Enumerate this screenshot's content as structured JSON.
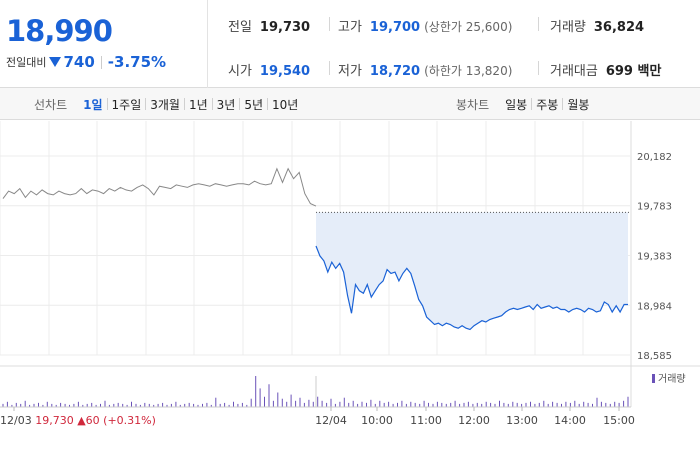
{
  "summary": {
    "price": "18,990",
    "change_label": "전일대비",
    "change_value": "740",
    "change_pct": "-3.75%",
    "direction": "down",
    "accent_color": "#1a62d6"
  },
  "stats": {
    "prev_close": {
      "label": "전일",
      "value": "19,730"
    },
    "open": {
      "label": "시가",
      "value": "19,540"
    },
    "high": {
      "label": "고가",
      "value": "19,700",
      "sub": "(상한가 25,600)"
    },
    "low": {
      "label": "저가",
      "value": "18,720",
      "sub": "(하한가 13,820)"
    },
    "volume": {
      "label": "거래량",
      "value": "36,824"
    },
    "amount": {
      "label": "거래대금",
      "value": "699 백만"
    }
  },
  "tabs": {
    "line_title": "선차트",
    "line_items": [
      "1일",
      "1주일",
      "3개월",
      "1년",
      "3년",
      "5년",
      "10년"
    ],
    "line_active": 0,
    "candle_title": "봉차트",
    "candle_items": [
      "일봉",
      "주봉",
      "월봉"
    ]
  },
  "chart_data": {
    "type": "line",
    "y_ticks": [
      "20,182",
      "19,783",
      "19,383",
      "18,984",
      "18,585"
    ],
    "y_tick_values": [
      20182,
      19783,
      19383,
      18984,
      18585
    ],
    "ylim": [
      18585,
      20182
    ],
    "prev_close_value": 19730,
    "x_ticks": [
      "12/03",
      "12/04",
      "10:00",
      "11:00",
      "12:00",
      "13:00",
      "14:00",
      "15:00"
    ],
    "previous_day_note": {
      "date": "12/03",
      "close": "19,730",
      "change": "▲60",
      "pct": "(+0.31%)"
    },
    "volume_legend": "거래량",
    "series": [
      {
        "day": "12/03",
        "values": [
          19840,
          19900,
          19880,
          19920,
          19850,
          19900,
          19870,
          19910,
          19880,
          19870,
          19900,
          19880,
          19870,
          19880,
          19920,
          19880,
          19910,
          19900,
          19880,
          19920,
          19900,
          19930,
          19910,
          19900,
          19930,
          19950,
          19920,
          19870,
          19940,
          19930,
          19920,
          19950,
          19940,
          19930,
          19950,
          19960,
          19950,
          19940,
          19960,
          19950,
          19940,
          19950,
          19960,
          19960,
          19950,
          19980,
          19960,
          19950,
          19960,
          20080,
          19970,
          20080,
          20000,
          20050,
          19880,
          19800,
          19780
        ]
      },
      {
        "day": "12/04",
        "values": [
          19460,
          19380,
          19340,
          19250,
          19330,
          19280,
          19320,
          19250,
          19060,
          18920,
          19150,
          19100,
          19080,
          19150,
          19050,
          19100,
          19150,
          19180,
          19270,
          19240,
          19250,
          19180,
          19240,
          19280,
          19240,
          19140,
          19030,
          18980,
          18890,
          18860,
          18830,
          18840,
          18820,
          18840,
          18830,
          18810,
          18800,
          18820,
          18800,
          18790,
          18820,
          18840,
          18860,
          18850,
          18870,
          18880,
          18890,
          18900,
          18930,
          18950,
          18960,
          18950,
          18960,
          18970,
          18980,
          18950,
          18990,
          18960,
          18970,
          18980,
          18960,
          18970,
          18950,
          18950,
          18930,
          18950,
          18960,
          18950,
          18930,
          18960,
          18950,
          18930,
          18940,
          19010,
          18990,
          18930,
          18980,
          18930,
          18990,
          18990
        ]
      }
    ],
    "volume": [
      3,
      5,
      2,
      4,
      3,
      6,
      2,
      3,
      4,
      2,
      5,
      3,
      2,
      4,
      3,
      2,
      3,
      5,
      2,
      3,
      4,
      2,
      3,
      6,
      2,
      3,
      4,
      3,
      2,
      5,
      3,
      2,
      4,
      3,
      2,
      3,
      4,
      2,
      3,
      5,
      2,
      3,
      4,
      3,
      2,
      3,
      4,
      2,
      9,
      3,
      4,
      2,
      5,
      3,
      4,
      2,
      8,
      30,
      18,
      10,
      22,
      6,
      14,
      8,
      5,
      12,
      6,
      9,
      4,
      7,
      5,
      10,
      6,
      4,
      8,
      3,
      5,
      9,
      4,
      6,
      3,
      5,
      4,
      7,
      3,
      6,
      4,
      5,
      3,
      4,
      6,
      3,
      5,
      4,
      3,
      6,
      4,
      3,
      5,
      4,
      3,
      4,
      6,
      3,
      4,
      5,
      3,
      4,
      3,
      5,
      4,
      3,
      6,
      4,
      3,
      5,
      4,
      3,
      4,
      5,
      3,
      4,
      6,
      3,
      5,
      4,
      3,
      5,
      4,
      6,
      3,
      5,
      4,
      3,
      9,
      5,
      4,
      3,
      5,
      4,
      6,
      10
    ],
    "line_color": "#888888",
    "today_line_color": "#1a62d6",
    "fill_color": "#e5edf9",
    "volume_color": "#6a52b8"
  }
}
